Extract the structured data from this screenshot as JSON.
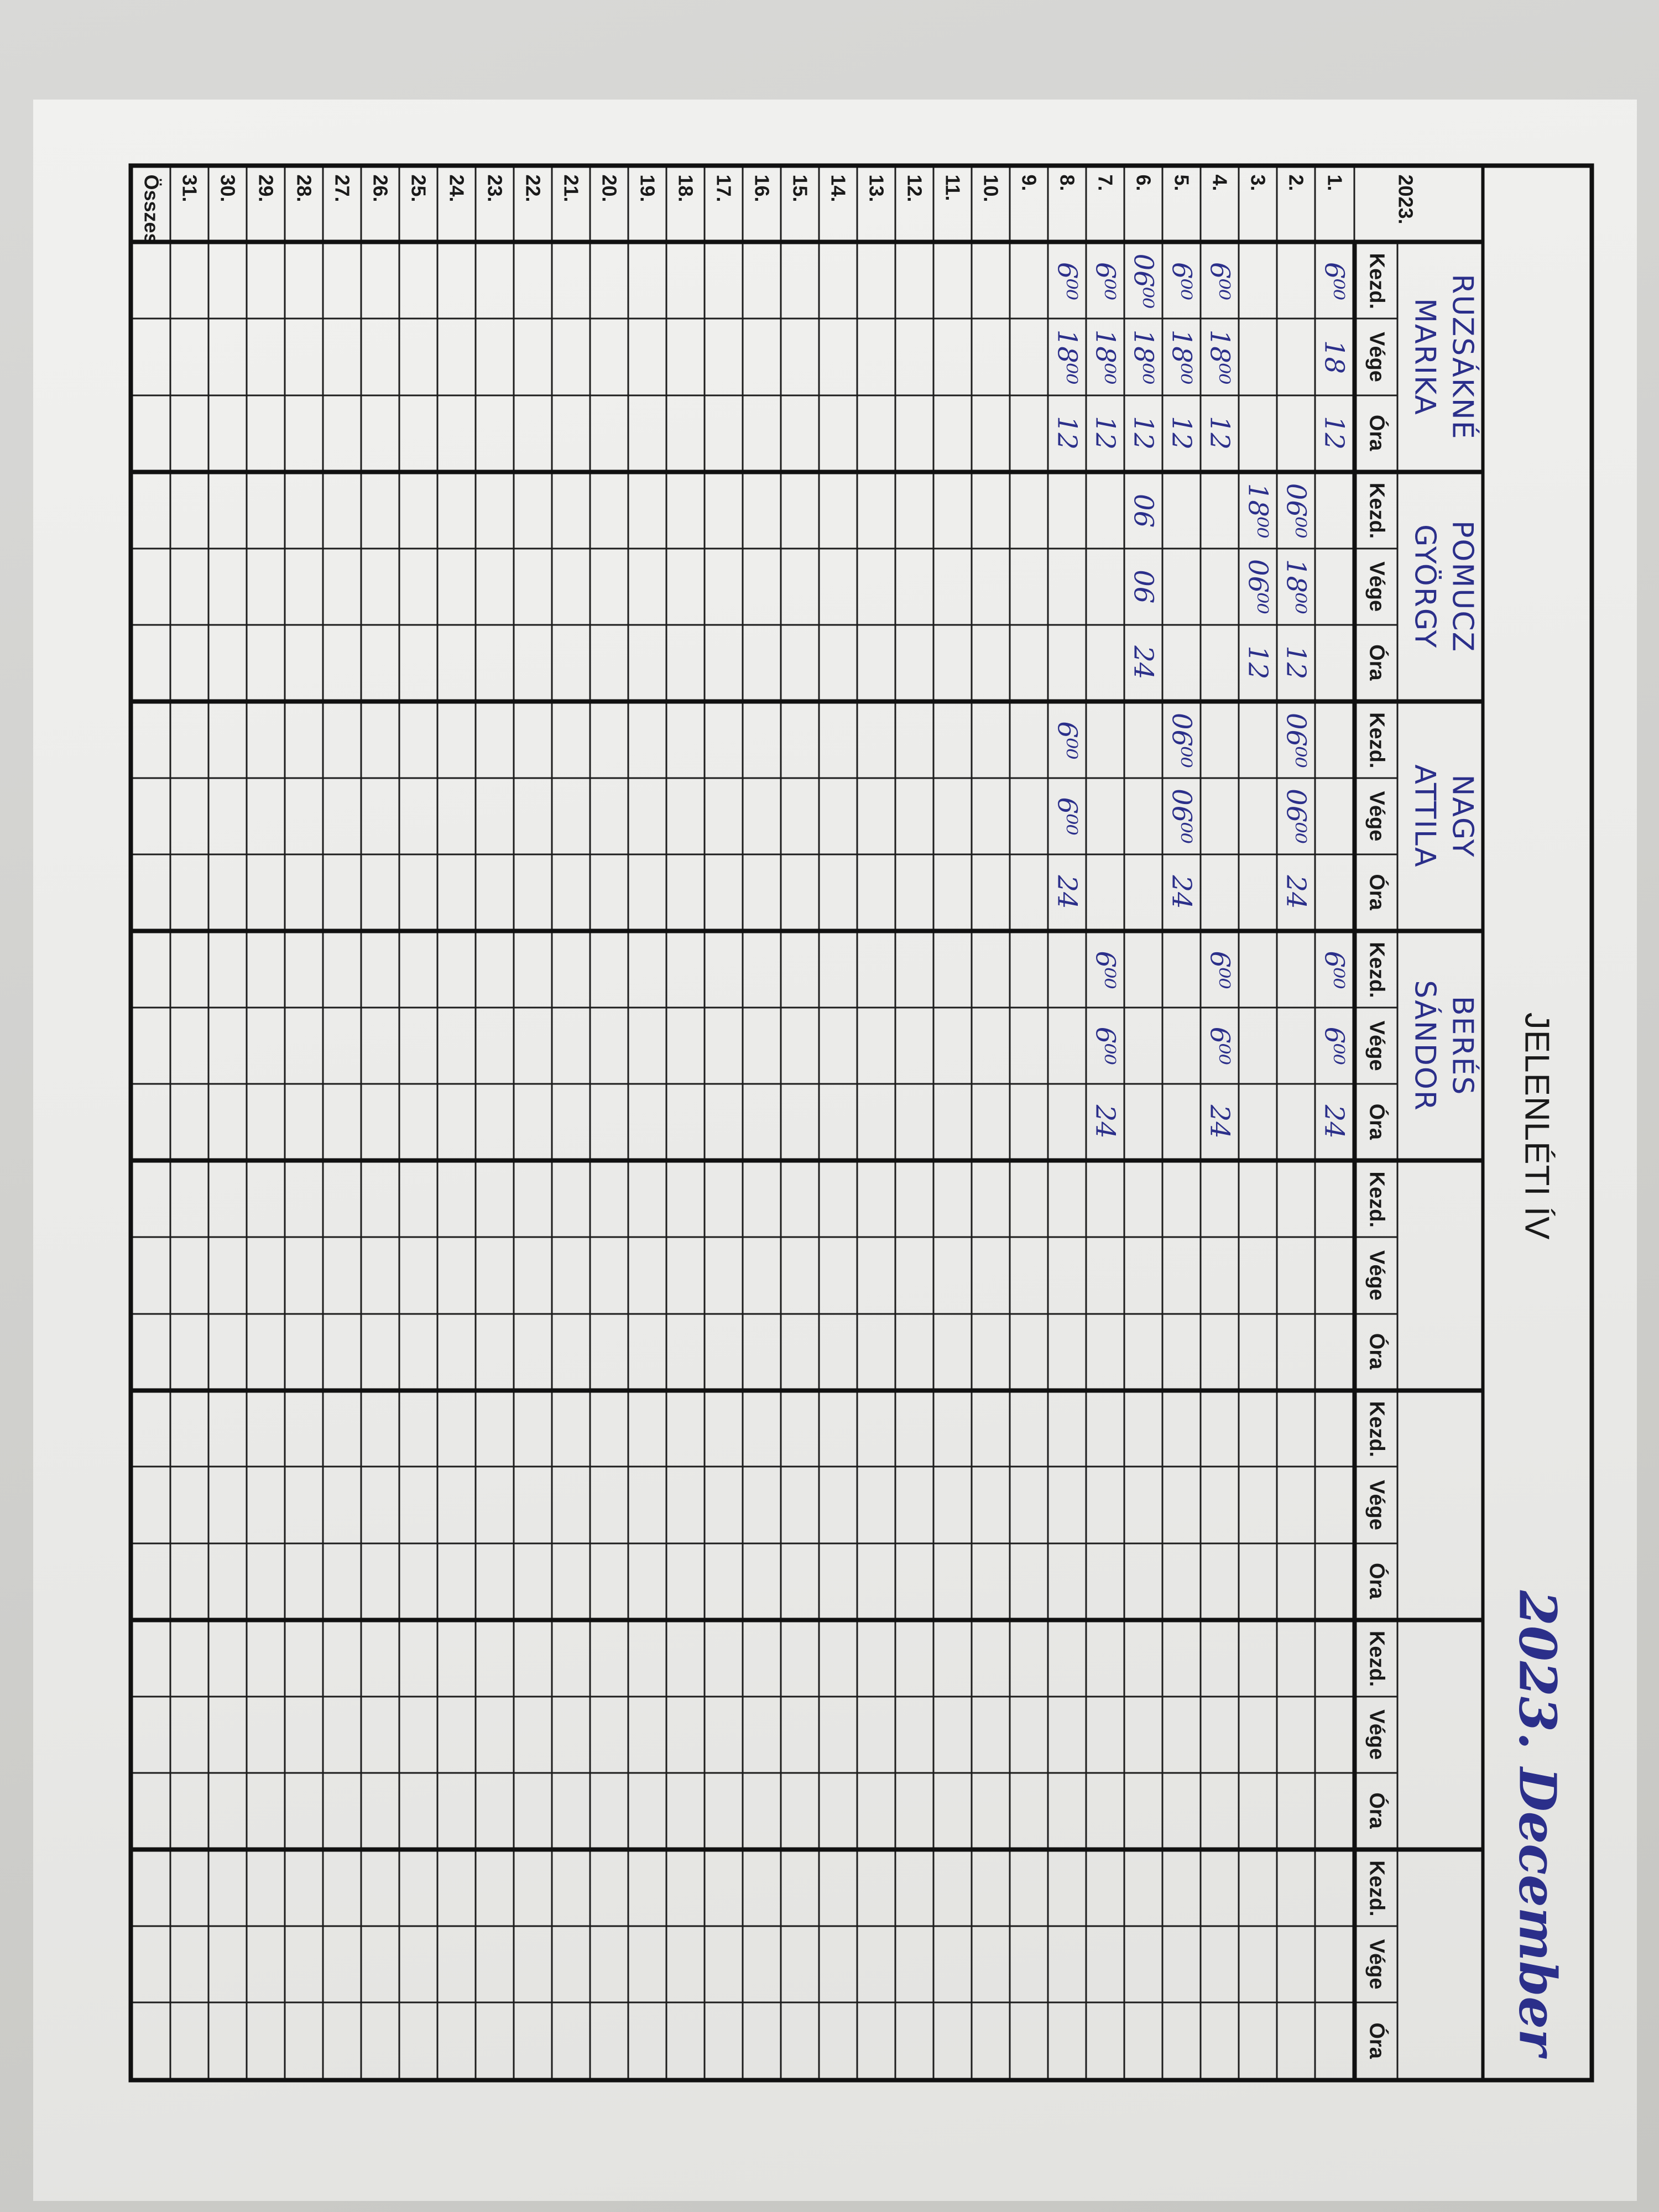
{
  "sheet": {
    "title": "JELENLÉTI ÍV",
    "period_handwritten": "2023. December",
    "year_label": "2023.",
    "column_labels": [
      "Kezd.",
      "Vége",
      "Óra"
    ],
    "total_label": "Összesen:",
    "persons": [
      {
        "last": "RUZSÁKNÉ",
        "first": "MARIKA"
      },
      {
        "last": "POMUCZ",
        "first": "GYÖRGY"
      },
      {
        "last": "NAGY",
        "first": "ATTILA"
      },
      {
        "last": "BERÉS",
        "first": "SÁNDOR"
      },
      {
        "last": "",
        "first": ""
      },
      {
        "last": "",
        "first": ""
      },
      {
        "last": "",
        "first": ""
      },
      {
        "last": "",
        "first": ""
      }
    ],
    "days": [
      "1.",
      "2.",
      "3.",
      "4.",
      "5.",
      "6.",
      "7.",
      "8.",
      "9.",
      "10.",
      "11.",
      "12.",
      "13.",
      "14.",
      "15.",
      "16.",
      "17.",
      "18.",
      "19.",
      "20.",
      "21.",
      "22.",
      "23.",
      "24.",
      "25.",
      "26.",
      "27.",
      "28.",
      "29.",
      "30.",
      "31."
    ],
    "entries": {
      "1.": {
        "0": [
          "6⁰⁰",
          "18",
          "12"
        ],
        "3": [
          "6⁰⁰",
          "6⁰⁰",
          "24"
        ]
      },
      "2.": {
        "1": [
          "06⁰⁰",
          "18⁰⁰",
          "12"
        ],
        "2": [
          "06⁰⁰",
          "06⁰⁰",
          "24"
        ]
      },
      "3.": {
        "1": [
          "18⁰⁰",
          "06⁰⁰",
          "12"
        ]
      },
      "4.": {
        "0": [
          "6⁰⁰",
          "18⁰⁰",
          "12"
        ],
        "3": [
          "6⁰⁰",
          "6⁰⁰",
          "24"
        ]
      },
      "5.": {
        "0": [
          "6⁰⁰",
          "18⁰⁰",
          "12"
        ],
        "2": [
          "06⁰⁰",
          "06⁰⁰",
          "24"
        ]
      },
      "6.": {
        "0": [
          "06⁰⁰",
          "18⁰⁰",
          "12"
        ],
        "1": [
          "06",
          "06",
          "24"
        ]
      },
      "7.": {
        "0": [
          "6⁰⁰",
          "18⁰⁰",
          "12"
        ],
        "3": [
          "6⁰⁰",
          "6⁰⁰",
          "24"
        ]
      },
      "8.": {
        "0": [
          "6⁰⁰",
          "18⁰⁰",
          "12"
        ],
        "2": [
          "6⁰⁰",
          "6⁰⁰",
          "24"
        ]
      }
    },
    "ink_color": "#2b2f8a"
  }
}
